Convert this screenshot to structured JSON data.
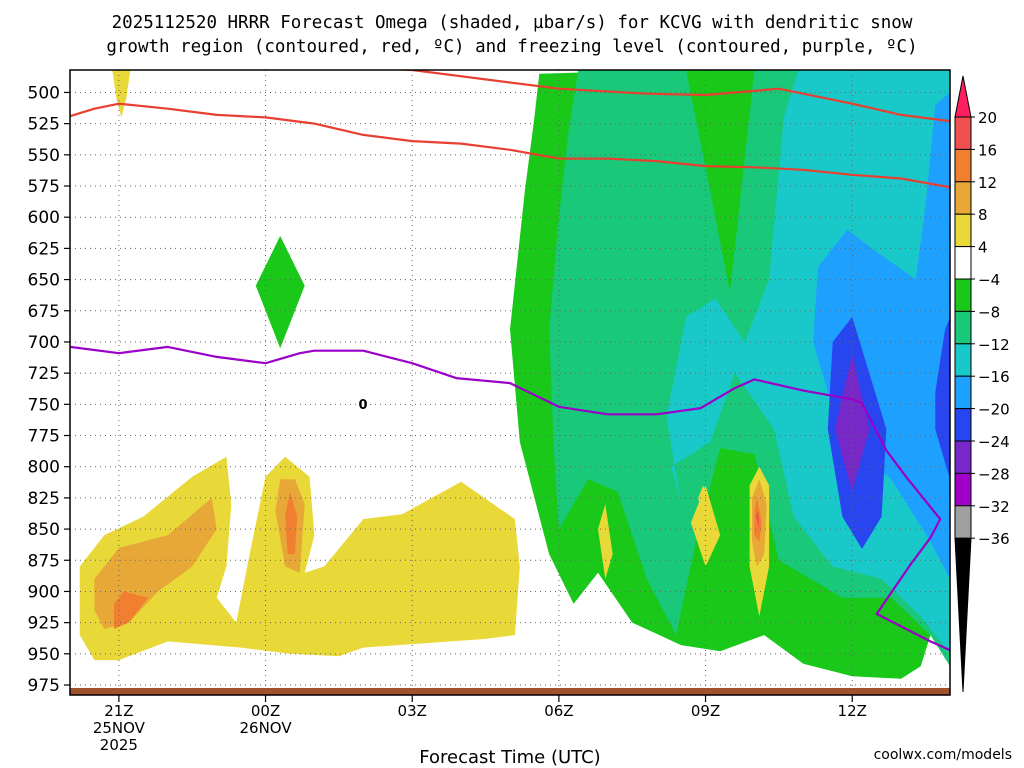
{
  "chart_data": {
    "type": "heatmap",
    "title_line1": "2025112520 HRRR Forecast Omega (shaded, µbar/s) for KCVG with dendritic snow",
    "title_line2": "growth region (contoured, red, ºC) and freezing level (contoured, purple, ºC)",
    "xlabel": "Forecast Time (UTC)",
    "credit": "coolwx.com/models",
    "x_range_hours": [
      -1.0,
      17.0
    ],
    "y_range_hpa": [
      482,
      983
    ],
    "x_ticks": [
      {
        "h": 0,
        "lines": [
          "21Z",
          "25NOV",
          "2025"
        ]
      },
      {
        "h": 3,
        "lines": [
          "00Z",
          "26NOV"
        ]
      },
      {
        "h": 6,
        "lines": [
          "03Z"
        ]
      },
      {
        "h": 9,
        "lines": [
          "06Z"
        ]
      },
      {
        "h": 12,
        "lines": [
          "09Z"
        ]
      },
      {
        "h": 15,
        "lines": [
          "12Z"
        ]
      }
    ],
    "y_ticks": [
      500,
      525,
      550,
      575,
      600,
      625,
      650,
      675,
      700,
      725,
      750,
      775,
      800,
      825,
      850,
      875,
      900,
      925,
      950,
      975
    ],
    "colorbar": {
      "labels": [
        "20",
        "16",
        "12",
        "8",
        "4",
        "−4",
        "−8",
        "−12",
        "−16",
        "−20",
        "−24",
        "−28",
        "−32",
        "−36"
      ],
      "colors": [
        "#ff1f60",
        "#f05050",
        "#f08030",
        "#e8a838",
        "#e8d838",
        "#ffffff",
        "#19c819",
        "#19c878",
        "#19c8c8",
        "#1ea0ff",
        "#2846f0",
        "#7828c8",
        "#a000c8",
        "#a0a0a0"
      ]
    },
    "isotherm_line_color": "#e84030",
    "freezing_line_color": "#9a00c8",
    "freezing_label": "0",
    "ground_color": "#a0522d",
    "series": [
      {
        "name": "dgz_top_isotherm",
        "color": "#e84030",
        "points": [
          [
            3.9,
            478
          ],
          [
            6,
            482
          ],
          [
            9,
            497
          ],
          [
            10.8,
            501
          ],
          [
            12,
            502
          ],
          [
            13.2,
            498
          ],
          [
            13.5,
            497
          ],
          [
            14,
            501
          ],
          [
            15,
            509
          ],
          [
            16,
            518
          ],
          [
            17,
            523
          ]
        ]
      },
      {
        "name": "dgz_bottom_isotherm_left",
        "color": "#e84030",
        "points": [
          [
            -1,
            519
          ],
          [
            -0.5,
            513
          ],
          [
            0,
            509
          ],
          [
            1,
            513
          ],
          [
            2,
            518
          ],
          [
            3,
            520
          ],
          [
            4,
            525
          ],
          [
            5,
            534
          ],
          [
            6,
            539
          ],
          [
            7,
            541
          ],
          [
            8,
            546
          ],
          [
            9,
            553
          ],
          [
            10,
            553
          ],
          [
            11,
            555
          ],
          [
            12,
            559
          ],
          [
            13,
            560
          ],
          [
            14,
            562
          ],
          [
            15,
            566
          ],
          [
            16,
            569
          ],
          [
            17,
            576
          ]
        ]
      },
      {
        "name": "freezing_level",
        "color": "#9a00c8",
        "points": [
          [
            -1,
            704
          ],
          [
            0,
            709
          ],
          [
            1,
            704
          ],
          [
            2,
            712
          ],
          [
            3,
            717
          ],
          [
            3.7,
            709
          ],
          [
            4,
            707
          ],
          [
            5,
            707
          ],
          [
            6,
            717
          ],
          [
            6.9,
            729
          ],
          [
            8,
            733
          ],
          [
            9,
            752
          ],
          [
            10,
            758
          ],
          [
            11,
            758
          ],
          [
            11.9,
            753
          ],
          [
            12.6,
            737
          ],
          [
            13,
            730
          ],
          [
            14,
            739
          ],
          [
            15,
            746
          ],
          [
            15.2,
            749
          ],
          [
            15.7,
            787
          ],
          [
            16.1,
            808
          ],
          [
            16.8,
            842
          ],
          [
            16.6,
            857
          ],
          [
            16.2,
            878
          ],
          [
            15.5,
            918
          ],
          [
            16.6,
            940
          ],
          [
            17,
            947
          ]
        ]
      }
    ],
    "omega_regions": [
      {
        "name": "omega-minus-4-broad",
        "color": "#19c819",
        "points": [
          [
            11.2,
            482
          ],
          [
            14.8,
            482
          ],
          [
            14.8,
            520
          ],
          [
            16,
            560
          ],
          [
            17,
            540
          ],
          [
            17,
            612
          ],
          [
            16.8,
            760
          ],
          [
            17,
            885
          ],
          [
            16.4,
            960
          ],
          [
            16,
            970
          ],
          [
            15,
            968
          ],
          [
            14,
            958
          ],
          [
            13.2,
            935
          ],
          [
            12.3,
            948
          ],
          [
            11.5,
            943
          ],
          [
            10.5,
            925
          ],
          [
            9.8,
            885
          ],
          [
            9.3,
            910
          ],
          [
            8.8,
            870
          ],
          [
            8.2,
            780
          ],
          [
            8,
            690
          ],
          [
            8.3,
            580
          ],
          [
            8.5,
            520
          ],
          [
            8.6,
            485
          ]
        ]
      },
      {
        "name": "omega-minus-4-blob",
        "color": "#19c819",
        "points": [
          [
            2.8,
            655
          ],
          [
            3.3,
            615
          ],
          [
            3.8,
            655
          ],
          [
            3.3,
            705
          ]
        ]
      },
      {
        "name": "omega-minus-8-main",
        "color": "#19c878",
        "points": [
          [
            9.4,
            482
          ],
          [
            11.6,
            482
          ],
          [
            12.0,
            560
          ],
          [
            12.5,
            660
          ],
          [
            13,
            482
          ],
          [
            17,
            482
          ],
          [
            17,
            960
          ],
          [
            16.6,
            935
          ],
          [
            15.8,
            905
          ],
          [
            14.8,
            905
          ],
          [
            13.5,
            875
          ],
          [
            13.0,
            790
          ],
          [
            12.3,
            785
          ],
          [
            11.8,
            860
          ],
          [
            11.4,
            935
          ],
          [
            10.8,
            890
          ],
          [
            10.2,
            820
          ],
          [
            9.6,
            810
          ],
          [
            9.0,
            850
          ],
          [
            8.9,
            790
          ],
          [
            8.8,
            690
          ],
          [
            9.0,
            600
          ],
          [
            9.2,
            530
          ]
        ]
      },
      {
        "name": "omega-minus-12",
        "color": "#19c8c8",
        "points": [
          [
            13.9,
            482
          ],
          [
            17,
            482
          ],
          [
            17,
            950
          ],
          [
            16.4,
            920
          ],
          [
            15.6,
            890
          ],
          [
            14.6,
            880
          ],
          [
            13.8,
            840
          ],
          [
            13.4,
            770
          ],
          [
            12.6,
            725
          ],
          [
            12.1,
            780
          ],
          [
            11.3,
            800
          ],
          [
            11.5,
            830
          ],
          [
            11.2,
            760
          ],
          [
            11.6,
            680
          ],
          [
            12.2,
            665
          ],
          [
            12.8,
            700
          ],
          [
            13.3,
            650
          ],
          [
            13.6,
            520
          ]
        ]
      },
      {
        "name": "omega-minus-16",
        "color": "#1ea0ff",
        "points": [
          [
            16.7,
            510
          ],
          [
            17,
            500
          ],
          [
            17,
            890
          ],
          [
            16.6,
            860
          ],
          [
            15.8,
            810
          ],
          [
            14.8,
            780
          ],
          [
            14.2,
            700
          ],
          [
            14.3,
            640
          ],
          [
            14.9,
            610
          ],
          [
            15.4,
            625
          ],
          [
            16.3,
            650
          ],
          [
            16.5,
            590
          ]
        ]
      },
      {
        "name": "omega-minus-20",
        "color": "#2846f0",
        "points": [
          [
            15.0,
            680
          ],
          [
            15.7,
            770
          ],
          [
            15.6,
            840
          ],
          [
            15.2,
            866
          ],
          [
            14.8,
            840
          ],
          [
            14.5,
            770
          ],
          [
            14.6,
            700
          ]
        ]
      },
      {
        "name": "omega-minus-20-right",
        "color": "#2846f0",
        "points": [
          [
            16.9,
            690
          ],
          [
            17,
            680
          ],
          [
            17,
            810
          ],
          [
            16.7,
            770
          ],
          [
            16.7,
            740
          ]
        ]
      },
      {
        "name": "omega-minus-24",
        "color": "#7828c8",
        "points": [
          [
            15.0,
            710
          ],
          [
            15.35,
            770
          ],
          [
            15.0,
            820
          ],
          [
            14.65,
            770
          ]
        ]
      },
      {
        "name": "omega-plus-4-left",
        "color": "#e8d838",
        "points": [
          [
            -0.8,
            880
          ],
          [
            -0.3,
            855
          ],
          [
            0.5,
            840
          ],
          [
            1.5,
            808
          ],
          [
            2.2,
            792
          ],
          [
            2.3,
            830
          ],
          [
            2.2,
            880
          ],
          [
            2.0,
            905
          ],
          [
            2.4,
            925
          ],
          [
            2.7,
            865
          ],
          [
            3.0,
            808
          ],
          [
            3.4,
            792
          ],
          [
            3.9,
            808
          ],
          [
            4.0,
            855
          ],
          [
            3.8,
            885
          ],
          [
            4.2,
            880
          ],
          [
            5.0,
            842
          ],
          [
            5.8,
            838
          ],
          [
            7.0,
            812
          ],
          [
            8.1,
            842
          ],
          [
            8.2,
            880
          ],
          [
            8.1,
            935
          ],
          [
            7.5,
            938
          ],
          [
            5.0,
            945
          ],
          [
            4.5,
            952
          ],
          [
            3.5,
            950
          ],
          [
            2.5,
            945
          ],
          [
            1.0,
            940
          ],
          [
            0,
            955
          ],
          [
            -0.5,
            955
          ],
          [
            -0.8,
            935
          ]
        ]
      },
      {
        "name": "omega-plus-4-blob-a",
        "color": "#e8d838",
        "points": [
          [
            11.7,
            845
          ],
          [
            12.0,
            815
          ],
          [
            12.3,
            855
          ],
          [
            12.0,
            880
          ]
        ]
      },
      {
        "name": "omega-plus-4-blob-b",
        "color": "#e8d838",
        "points": [
          [
            11.85,
            825
          ],
          [
            11.95,
            815
          ],
          [
            12.05,
            825
          ],
          [
            11.95,
            845
          ]
        ]
      },
      {
        "name": "omega-plus-4-tiny",
        "color": "#e8d838",
        "points": [
          [
            9.8,
            850
          ],
          [
            9.95,
            830
          ],
          [
            10.1,
            870
          ],
          [
            9.95,
            890
          ]
        ]
      },
      {
        "name": "omega-plus-4-top",
        "color": "#e8d838",
        "points": [
          [
            -0.15,
            478
          ],
          [
            0.25,
            478
          ],
          [
            0.15,
            505
          ],
          [
            0.05,
            520
          ],
          [
            -0.05,
            505
          ]
        ]
      },
      {
        "name": "omega-plus-4-mid",
        "color": "#e8d838",
        "points": [
          [
            12.9,
            815
          ],
          [
            13.1,
            800
          ],
          [
            13.3,
            815
          ],
          [
            13.3,
            880
          ],
          [
            13.1,
            920
          ],
          [
            12.9,
            880
          ]
        ]
      },
      {
        "name": "omega-plus-8-left",
        "color": "#e8a838",
        "points": [
          [
            -0.5,
            890
          ],
          [
            0,
            865
          ],
          [
            1.0,
            855
          ],
          [
            1.9,
            825
          ],
          [
            2.0,
            850
          ],
          [
            1.5,
            880
          ],
          [
            0.8,
            900
          ],
          [
            0.2,
            925
          ],
          [
            -0.3,
            930
          ],
          [
            -0.5,
            915
          ]
        ]
      },
      {
        "name": "omega-plus-8-mid",
        "color": "#e8a838",
        "points": [
          [
            3.2,
            835
          ],
          [
            3.3,
            810
          ],
          [
            3.6,
            810
          ],
          [
            3.8,
            830
          ],
          [
            3.7,
            885
          ],
          [
            3.4,
            880
          ]
        ]
      },
      {
        "name": "omega-plus-8-right",
        "color": "#e8a838",
        "points": [
          [
            12.95,
            825
          ],
          [
            13.1,
            810
          ],
          [
            13.25,
            830
          ],
          [
            13.2,
            870
          ],
          [
            13.05,
            880
          ],
          [
            12.95,
            860
          ]
        ]
      },
      {
        "name": "omega-plus-12-left",
        "color": "#f08030",
        "points": [
          [
            -0.1,
            910
          ],
          [
            0.1,
            900
          ],
          [
            0.6,
            905
          ],
          [
            0.2,
            925
          ],
          [
            -0.1,
            930
          ]
        ]
      },
      {
        "name": "omega-plus-12-mid",
        "color": "#f08030",
        "points": [
          [
            3.4,
            840
          ],
          [
            3.5,
            820
          ],
          [
            3.65,
            840
          ],
          [
            3.6,
            870
          ],
          [
            3.45,
            870
          ]
        ]
      },
      {
        "name": "omega-plus-12-right",
        "color": "#f08030",
        "points": [
          [
            13.0,
            835
          ],
          [
            13.05,
            825
          ],
          [
            13.15,
            845
          ],
          [
            13.1,
            860
          ],
          [
            13.0,
            855
          ]
        ]
      },
      {
        "name": "omega-plus-16-right",
        "color": "#f05050",
        "points": [
          [
            13.03,
            840
          ],
          [
            13.08,
            835
          ],
          [
            13.1,
            850
          ]
        ]
      }
    ]
  }
}
